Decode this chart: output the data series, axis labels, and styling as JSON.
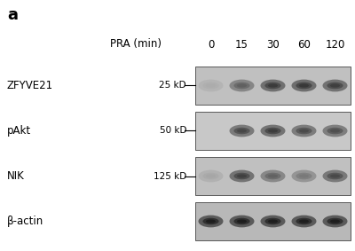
{
  "panel_label": "a",
  "pra_label": "PRA (min)",
  "time_points": [
    "0",
    "15",
    "30",
    "60",
    "120"
  ],
  "rows": [
    {
      "protein_label": "ZFYVE21",
      "mw_label": "25 kD",
      "bands": [
        0.12,
        0.58,
        0.8,
        0.82,
        0.78
      ],
      "bg_color": "#c0c0c0",
      "band_color": "#222222"
    },
    {
      "protein_label": "pAkt",
      "mw_label": "50 kD",
      "bands": [
        0.0,
        0.72,
        0.78,
        0.7,
        0.68
      ],
      "bg_color": "#c8c8c8",
      "band_color": "#1e1e1e"
    },
    {
      "protein_label": "NIK",
      "mw_label": "125 kD",
      "bands": [
        0.15,
        0.75,
        0.55,
        0.42,
        0.7
      ],
      "bg_color": "#c0c0c0",
      "band_color": "#1e1e1e"
    },
    {
      "protein_label": "β-actin",
      "mw_label": "",
      "bands": [
        0.88,
        0.88,
        0.88,
        0.88,
        0.88
      ],
      "bg_color": "#b8b8b8",
      "band_color": "#111111"
    }
  ],
  "figure_bg": "#ffffff",
  "lane_count": 5,
  "label_fontsize": 8.5,
  "panel_fontsize": 13,
  "mw_fontsize": 7.5,
  "header_fontsize": 8.5
}
